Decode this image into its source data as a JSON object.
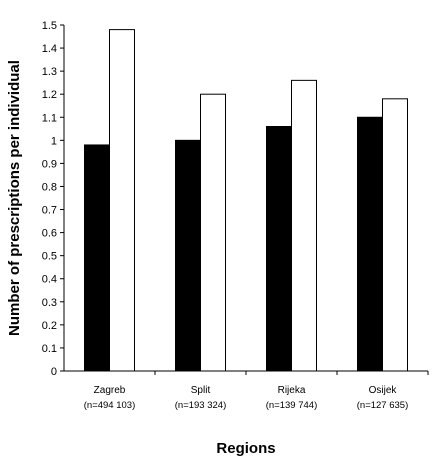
{
  "chart_data": {
    "type": "bar",
    "xlabel": "Regions",
    "ylabel": "Number of prescriptions per individual",
    "ylim": [
      0,
      1.5
    ],
    "yticks": [
      "0",
      "0.1",
      "0.2",
      "0.3",
      "0.4",
      "0.5",
      "0.6",
      "0.7",
      "0.8",
      "0.9",
      "1",
      "1.1",
      "1.2",
      "1.3",
      "1.4",
      "1.5"
    ],
    "categories": [
      "Zagreb",
      "Split",
      "Rijeka",
      "Osijek"
    ],
    "category_sublabels": [
      "(n=494 103)",
      "(n=193 324)",
      "(n=139 744)",
      "(n=127 635)"
    ],
    "series": [
      {
        "color": "#000000",
        "values": [
          0.98,
          1.0,
          1.06,
          1.1
        ]
      },
      {
        "color": "#ffffff",
        "values": [
          1.48,
          1.2,
          1.26,
          1.18
        ]
      }
    ],
    "grid": false,
    "legend": "none"
  }
}
